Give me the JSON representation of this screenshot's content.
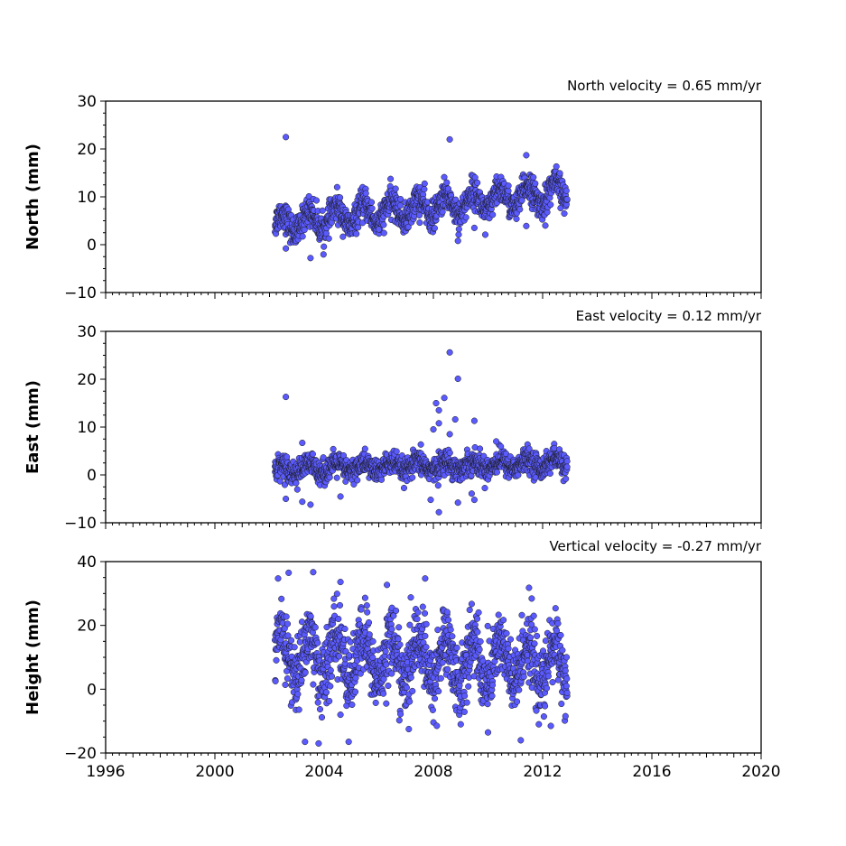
{
  "chart_data": [
    {
      "type": "scatter",
      "title": "North velocity = 0.65 mm/yr",
      "ylabel": "North (mm)",
      "xlim": [
        1996,
        2020
      ],
      "ylim": [
        -10,
        30
      ],
      "yticks": [
        -10,
        0,
        10,
        20,
        30
      ],
      "x_range_of_data": [
        2002.2,
        2012.9
      ],
      "trend": {
        "intercept_at_2002_2": 4.2,
        "slope_per_year": 0.65,
        "seasonal_amplitude": 2.2,
        "scatter": 1.5
      },
      "outliers": [
        [
          2002.6,
          22.5
        ],
        [
          2008.6,
          22.0
        ],
        [
          2011.4,
          18.7
        ],
        [
          2003.5,
          -2.8
        ],
        [
          2002.6,
          -0.8
        ],
        [
          2008.9,
          0.8
        ],
        [
          2009.9,
          2.1
        ],
        [
          2012.1,
          4.0
        ],
        [
          2011.4,
          3.9
        ],
        [
          2007.5,
          4.6
        ],
        [
          2006.0,
          3.2
        ],
        [
          2009.5,
          3.5
        ]
      ],
      "color": "#5a5aff"
    },
    {
      "type": "scatter",
      "title": "East velocity = 0.12 mm/yr",
      "ylabel": "East (mm)",
      "xlim": [
        1996,
        2020
      ],
      "ylim": [
        -10,
        30
      ],
      "yticks": [
        -10,
        0,
        10,
        20,
        30
      ],
      "x_range_of_data": [
        2002.2,
        2012.9
      ],
      "trend": {
        "intercept_at_2002_2": 1.2,
        "slope_per_year": 0.12,
        "seasonal_amplitude": 0.9,
        "scatter": 1.2
      },
      "outliers": [
        [
          2002.6,
          16.3
        ],
        [
          2008.6,
          25.6
        ],
        [
          2008.9,
          20.1
        ],
        [
          2008.4,
          16.1
        ],
        [
          2008.1,
          15.0
        ],
        [
          2008.2,
          13.5
        ],
        [
          2009.5,
          11.3
        ],
        [
          2008.2,
          10.8
        ],
        [
          2008.8,
          11.6
        ],
        [
          2008.0,
          9.5
        ],
        [
          2008.6,
          8.5
        ],
        [
          2010.3,
          7.0
        ],
        [
          2003.2,
          6.7
        ],
        [
          2008.2,
          -7.8
        ],
        [
          2008.9,
          -5.8
        ],
        [
          2009.5,
          -5.2
        ],
        [
          2007.9,
          -5.2
        ],
        [
          2003.5,
          -6.2
        ],
        [
          2003.2,
          -5.6
        ],
        [
          2002.6,
          -5.0
        ],
        [
          2004.6,
          -4.5
        ],
        [
          2009.4,
          -3.9
        ]
      ],
      "color": "#5a5aff"
    },
    {
      "type": "scatter",
      "title": "Vertical velocity = -0.27 mm/yr",
      "ylabel": "Height (mm)",
      "xlabel": "",
      "xlim": [
        1996,
        2020
      ],
      "ylim": [
        -20,
        40
      ],
      "yticks": [
        -20,
        0,
        20,
        40
      ],
      "xticks": [
        1996,
        2000,
        2004,
        2008,
        2012,
        2016,
        2020
      ],
      "x_range_of_data": [
        2002.2,
        2012.9
      ],
      "trend": {
        "intercept_at_2002_2": 10.5,
        "slope_per_year": -0.27,
        "seasonal_amplitude": 7.0,
        "scatter": 5.5
      },
      "outliers": [
        [
          2002.7,
          36.5
        ],
        [
          2003.6,
          36.7
        ],
        [
          2004.6,
          33.6
        ],
        [
          2007.7,
          34.7
        ],
        [
          2006.3,
          32.7
        ],
        [
          2011.5,
          31.8
        ],
        [
          2003.3,
          -16.5
        ],
        [
          2003.8,
          -17.0
        ],
        [
          2004.9,
          -16.5
        ],
        [
          2011.2,
          -16.0
        ],
        [
          2012.3,
          -11.5
        ],
        [
          2007.1,
          -12.5
        ],
        [
          2009.0,
          -11.0
        ],
        [
          2004.6,
          -8.0
        ]
      ],
      "color": "#5a5aff"
    }
  ]
}
